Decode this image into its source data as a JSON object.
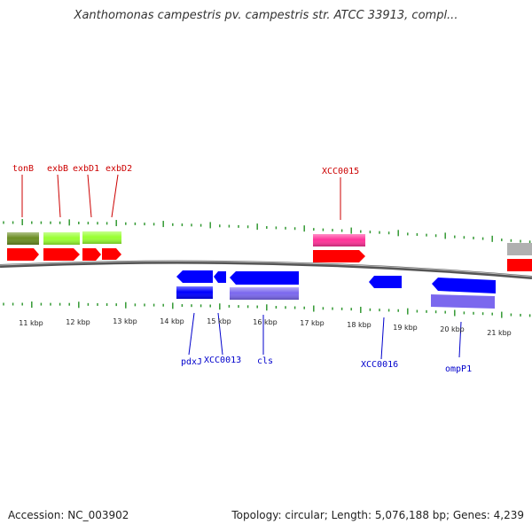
{
  "title": "Xanthomonas campestris pv. campestris str. ATCC 33913, compl...",
  "footer": {
    "accession": "Accession: NC_003902",
    "summary": "Topology: circular; Length: 5,076,188 bp; Genes: 4,239"
  },
  "colors": {
    "forward_cds": "#ff0000",
    "reverse_cds": "#0000ff",
    "tonB_gene": "#6b8e23",
    "exb_genes": "#99ff33",
    "xcc0015_gene": "#ff3399",
    "reverse_gene_purple": "#7b68ee",
    "gray_gene": "#b0b0b0",
    "forward_label": "#cc0000",
    "reverse_label": "#0000cc",
    "tick": "#339933"
  },
  "axis": {
    "unit": "kbp",
    "ticks": [
      "11 kbp",
      "12 kbp",
      "13 kbp",
      "14 kbp",
      "15 kbp",
      "16 kbp",
      "17 kbp",
      "18 kbp",
      "19 kbp",
      "20 kbp",
      "21 kbp"
    ]
  },
  "forward_labels": [
    "tonB",
    "exbB",
    "exbD1",
    "exbD2",
    "XCC0015"
  ],
  "reverse_labels": [
    "pdxJ",
    "XCC0013",
    "cls",
    "XCC0016",
    "ompP1"
  ]
}
